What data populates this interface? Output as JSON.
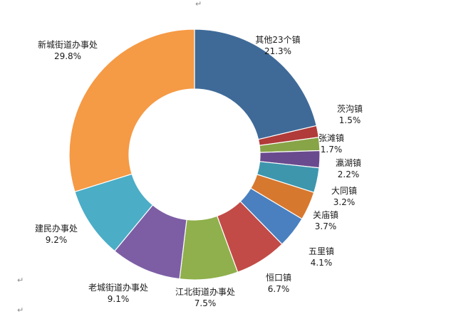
{
  "page": {
    "paragraph_mark": "↵"
  },
  "chart_data": {
    "type": "pie",
    "variant": "donut",
    "title": "",
    "start": "12 o'clock",
    "direction": "clockwise",
    "label_content": "category and percentage",
    "legend": "none",
    "unit": "%",
    "categories": [
      "其他23个镇",
      "茨沟镇",
      "张滩镇",
      "瀛湖镇",
      "大同镇",
      "关庙镇",
      "五里镇",
      "恒口镇",
      "江北街道办事处",
      "老城街道办事处",
      "建民办事处",
      "新城街道办事处"
    ],
    "values": [
      21.3,
      1.5,
      1.7,
      2.2,
      3.2,
      3.7,
      4.1,
      6.7,
      7.5,
      9.1,
      9.2,
      29.8
    ],
    "value_labels": [
      "21.3%",
      "1.5%",
      "1.7%",
      "2.2%",
      "3.2%",
      "3.7%",
      "4.1%",
      "6.7%",
      "7.5%",
      "9.1%",
      "9.2%",
      "29.8%"
    ],
    "colors": [
      "#3f6a98",
      "#b03b39",
      "#87a447",
      "#6a4a8e",
      "#3e96ad",
      "#d7782f",
      "#4a80c0",
      "#c24b47",
      "#8fb04c",
      "#7d5ea5",
      "#4badc6",
      "#f59a45"
    ]
  }
}
